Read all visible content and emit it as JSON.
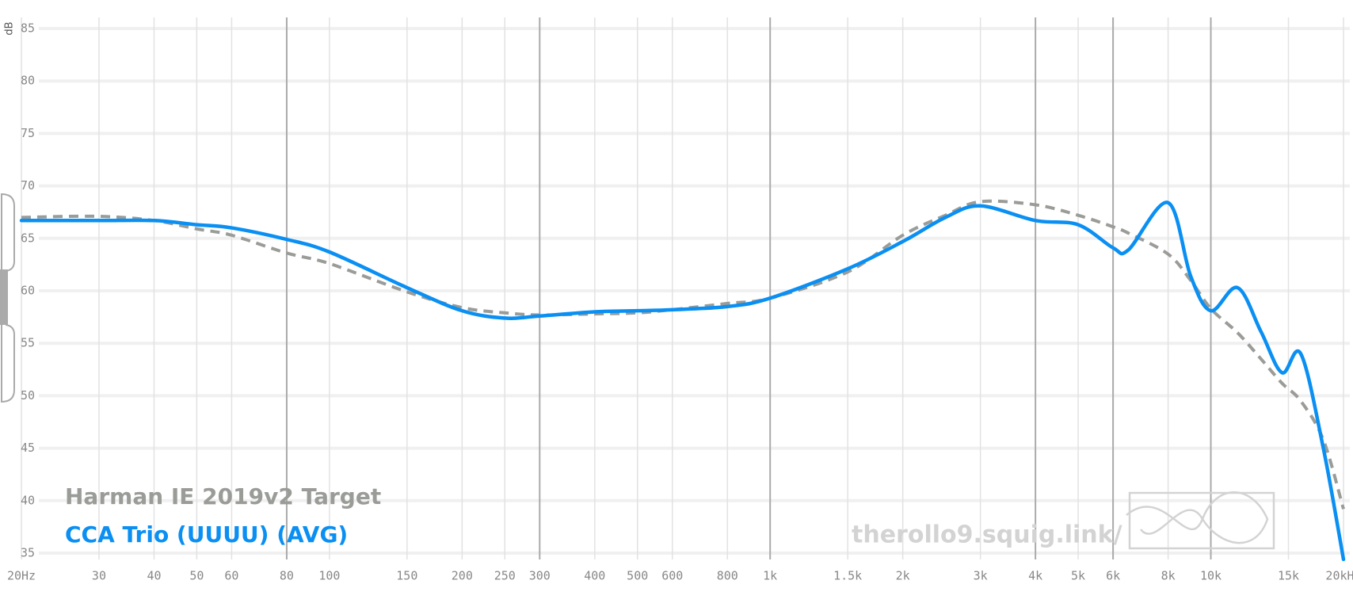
{
  "chart_data": {
    "type": "line",
    "y_label": "dB",
    "log_x": true,
    "xlim": [
      20,
      20000
    ],
    "ylim": [
      35,
      85
    ],
    "xticks": [
      {
        "value": 20,
        "label": "20Hz"
      },
      30,
      40,
      50,
      60,
      80,
      100,
      150,
      200,
      250,
      300,
      400,
      500,
      600,
      800,
      {
        "value": 1000,
        "label": "1k"
      },
      {
        "value": 1500,
        "label": "1.5k"
      },
      {
        "value": 2000,
        "label": "2k"
      },
      {
        "value": 3000,
        "label": "3k"
      },
      {
        "value": 4000,
        "label": "4k"
      },
      {
        "value": 5000,
        "label": "5k"
      },
      {
        "value": 6000,
        "label": "6k"
      },
      {
        "value": 8000,
        "label": "8k"
      },
      {
        "value": 10000,
        "label": "10k"
      },
      {
        "value": 15000,
        "label": "15k"
      },
      {
        "value": 20000,
        "label": "20kHz"
      }
    ],
    "emphasized_xticks": [
      80,
      300,
      1000,
      4000,
      6000,
      10000
    ],
    "yticks": [
      35,
      40,
      45,
      50,
      55,
      60,
      65,
      70,
      75,
      80,
      85
    ],
    "faded_yticks": [
      40,
      50,
      60,
      70,
      80
    ],
    "grid": true,
    "x": [
      20,
      30,
      40,
      50,
      60,
      80,
      100,
      150,
      200,
      250,
      300,
      400,
      500,
      600,
      800,
      1000,
      1500,
      2000,
      2500,
      3000,
      4000,
      5000,
      6000,
      6500,
      8000,
      9000,
      10000,
      11500,
      13000,
      14500,
      16000,
      18000,
      20000
    ],
    "series": [
      {
        "name": "Harman IE 2019v2 Target",
        "color": "#9a9c98",
        "dashed": true,
        "values": [
          67.0,
          67.1,
          66.7,
          65.9,
          65.3,
          63.6,
          62.6,
          59.9,
          58.4,
          57.9,
          57.7,
          57.8,
          57.9,
          58.2,
          58.8,
          59.3,
          61.8,
          65.3,
          67.2,
          68.5,
          68.2,
          67.2,
          66.1,
          65.5,
          63.5,
          61.0,
          58.3,
          56.0,
          53.5,
          51.2,
          49.5,
          45.8,
          39.2
        ]
      },
      {
        "name": "CCA Trio (UUUU) (AVG)",
        "color": "#0a8ff2",
        "dashed": false,
        "values": [
          66.7,
          66.7,
          66.7,
          66.3,
          66.0,
          64.9,
          63.7,
          60.3,
          58.1,
          57.4,
          57.6,
          58.0,
          58.1,
          58.2,
          58.5,
          59.3,
          62.1,
          64.7,
          67.0,
          68.1,
          66.7,
          66.3,
          64.1,
          63.9,
          68.4,
          61.4,
          58.1,
          60.3,
          56.1,
          52.2,
          54.0,
          45.0,
          34.4
        ]
      }
    ],
    "watermark": "therollo9.squig.link/"
  }
}
